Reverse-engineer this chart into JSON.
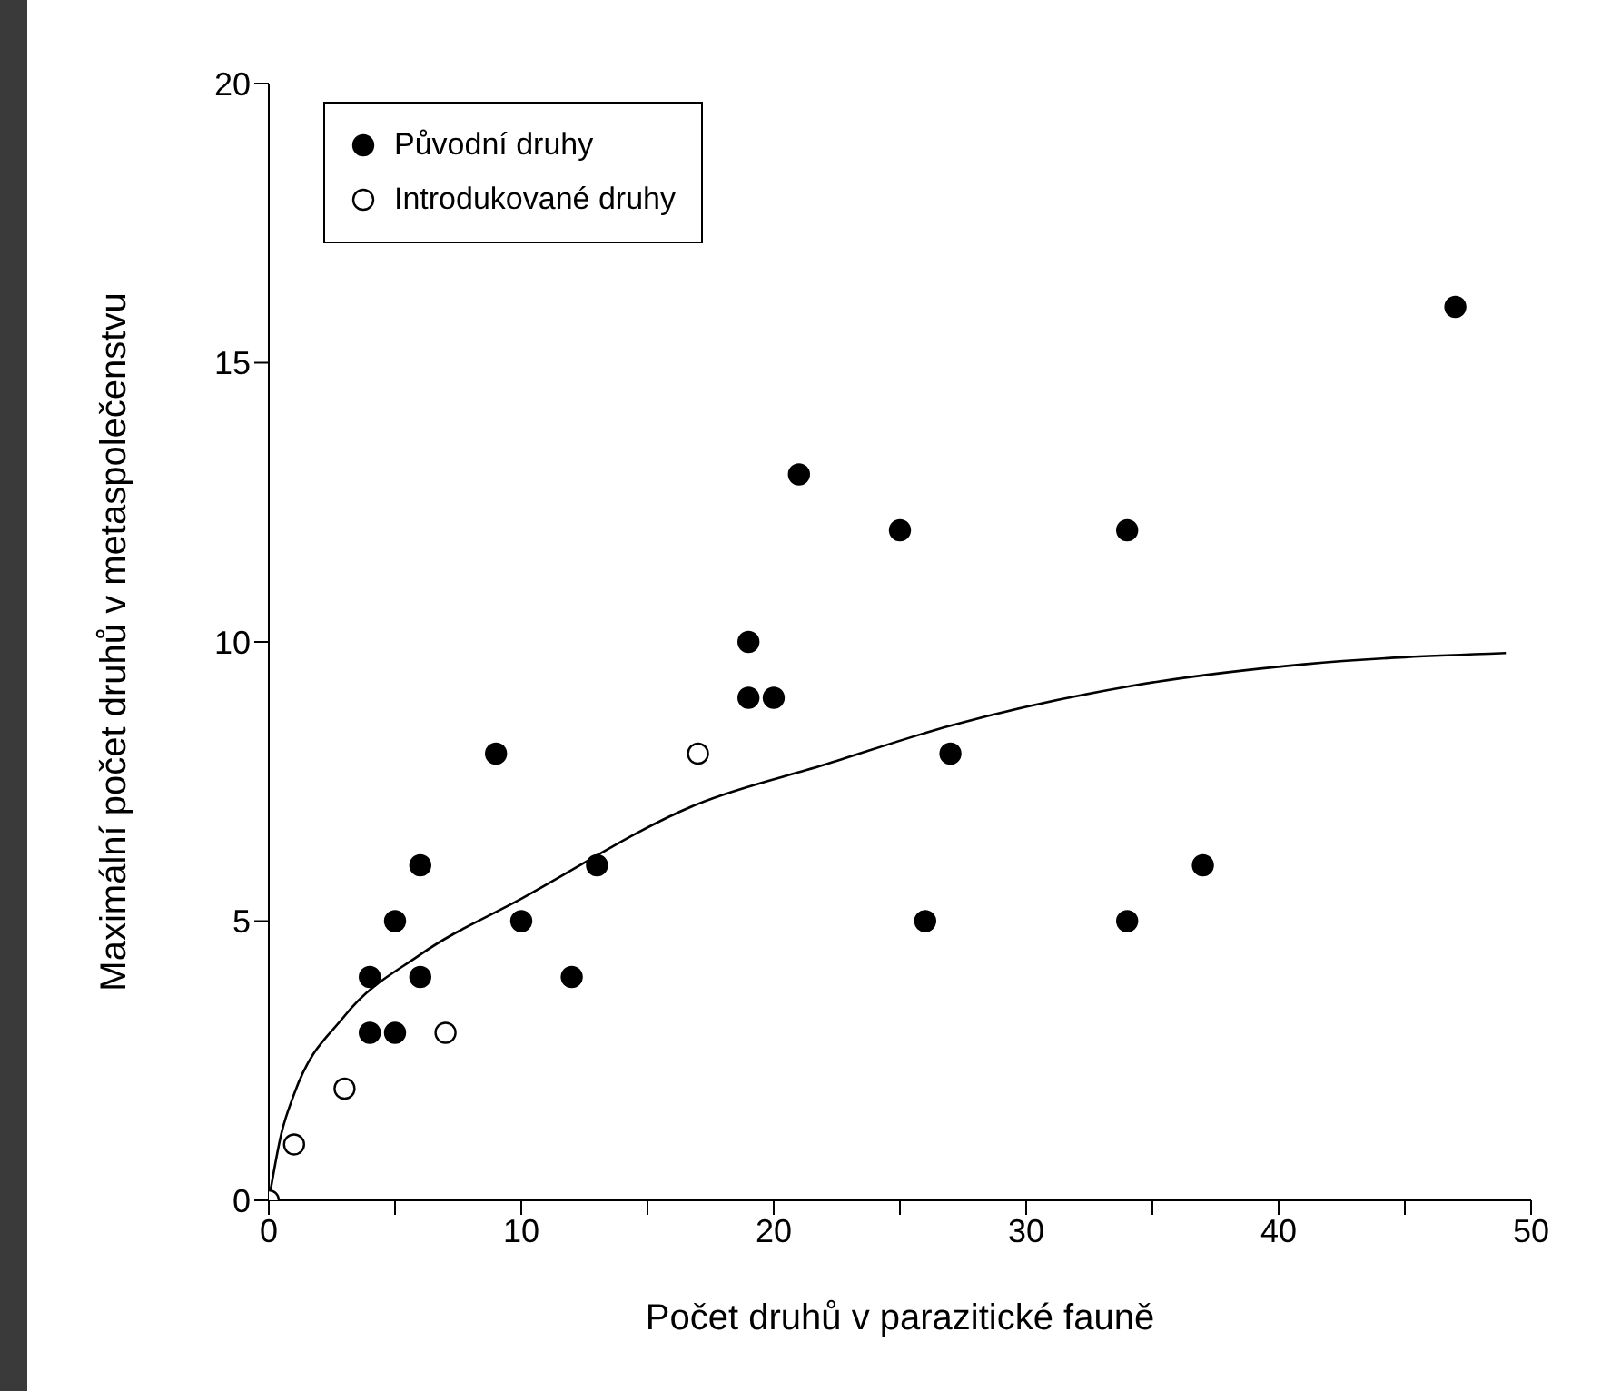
{
  "chart_data": {
    "type": "scatter",
    "xlabel": "Počet druhů v parazitické fauně",
    "ylabel": "Maximální počet druhů v metaspolečenstvu",
    "xlim": [
      0,
      50
    ],
    "ylim": [
      0,
      20
    ],
    "xticks": [
      0,
      {
        "value": 5,
        "label": null
      },
      10,
      {
        "value": 15,
        "label": null
      },
      20,
      {
        "value": 25,
        "label": null
      },
      30,
      {
        "value": 35,
        "label": null
      },
      40,
      {
        "value": 45,
        "label": null
      },
      50
    ],
    "yticks": [
      0,
      5,
      10,
      15,
      20
    ],
    "legend": "top left",
    "marker": "circle",
    "series": [
      {
        "name": "Původní druhy",
        "color": "#000000",
        "x": [
          4,
          4,
          5,
          5,
          6,
          6,
          9,
          10,
          12,
          13,
          19,
          19,
          20,
          21,
          25,
          26,
          27,
          34,
          34,
          37,
          47
        ],
        "values": [
          3,
          4,
          3,
          5,
          4,
          6,
          8,
          5,
          4,
          6,
          9,
          10,
          9,
          13,
          12,
          5,
          8,
          5,
          12,
          6,
          16
        ]
      },
      {
        "name": "Introdukované druhy",
        "color": "#ffffff",
        "x": [
          0,
          1,
          3,
          7,
          17
        ],
        "values": [
          0,
          1,
          2,
          3,
          8
        ]
      },
      {
        "type": "line",
        "marker": "none",
        "color": "#000000",
        "x": [
          0,
          0.5,
          1,
          3,
          6,
          10,
          17,
          22,
          27,
          34,
          41,
          49
        ],
        "values": [
          0,
          1.2,
          1.9,
          3.3,
          4.4,
          5.4,
          7.1,
          7.8,
          8.5,
          9.2,
          9.6,
          9.8
        ]
      }
    ]
  }
}
